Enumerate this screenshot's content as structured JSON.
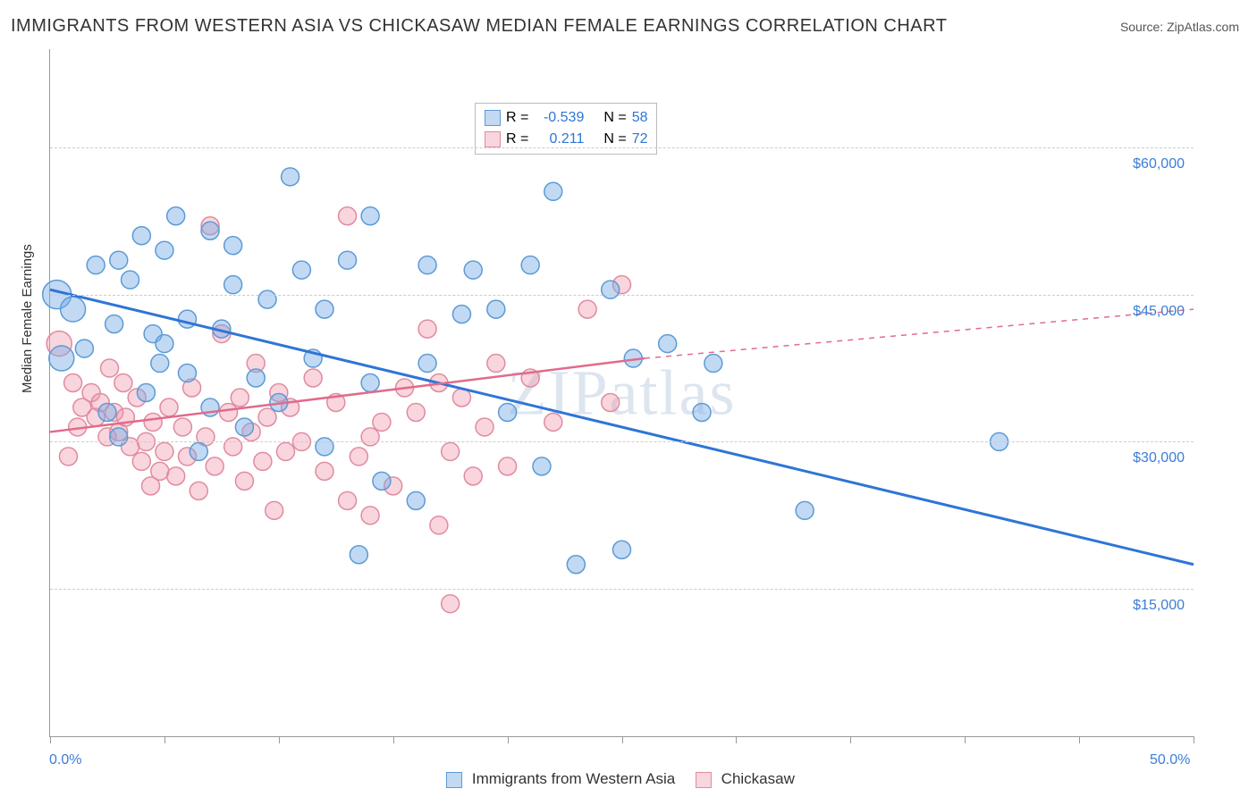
{
  "title": "IMMIGRANTS FROM WESTERN ASIA VS CHICKASAW MEDIAN FEMALE EARNINGS CORRELATION CHART",
  "source": "Source: ZipAtlas.com",
  "watermark": "ZIPatlas",
  "y_axis_label": "Median Female Earnings",
  "chart": {
    "type": "scatter",
    "xlim": [
      0,
      50
    ],
    "ylim": [
      0,
      70000
    ],
    "x_ticks_pct": [
      0,
      5,
      10,
      15,
      20,
      25,
      30,
      35,
      40,
      45,
      50
    ],
    "x_tick_labels": {
      "start": "0.0%",
      "end": "50.0%"
    },
    "y_gridlines": [
      15000,
      30000,
      45000,
      60000
    ],
    "y_tick_labels": [
      "$15,000",
      "$30,000",
      "$45,000",
      "$60,000"
    ],
    "background_color": "#ffffff",
    "grid_color": "#cccccc",
    "series": [
      {
        "name": "Immigrants from Western Asia",
        "color_fill": "rgba(120,170,230,0.45)",
        "color_stroke": "#5b9bd5",
        "marker_radius": 10,
        "trend": {
          "x1": 0,
          "y1": 45500,
          "x2": 50,
          "y2": 17500,
          "color": "#2e75d6",
          "width": 3,
          "dash": "none"
        },
        "r_value": "-0.539",
        "n_value": "58",
        "points": [
          {
            "x": 2.0,
            "y": 48000,
            "r": 10
          },
          {
            "x": 3.0,
            "y": 48500,
            "r": 10
          },
          {
            "x": 0.3,
            "y": 45000,
            "r": 16
          },
          {
            "x": 1.0,
            "y": 43500,
            "r": 14
          },
          {
            "x": 3.5,
            "y": 46500,
            "r": 10
          },
          {
            "x": 4.0,
            "y": 51000,
            "r": 10
          },
          {
            "x": 5.0,
            "y": 49500,
            "r": 10
          },
          {
            "x": 5.5,
            "y": 53000,
            "r": 10
          },
          {
            "x": 7.0,
            "y": 51500,
            "r": 10
          },
          {
            "x": 8.0,
            "y": 50000,
            "r": 10
          },
          {
            "x": 10.5,
            "y": 57000,
            "r": 10
          },
          {
            "x": 4.5,
            "y": 41000,
            "r": 10
          },
          {
            "x": 6.0,
            "y": 42500,
            "r": 10
          },
          {
            "x": 7.5,
            "y": 41500,
            "r": 10
          },
          {
            "x": 5.0,
            "y": 40000,
            "r": 10
          },
          {
            "x": 8.0,
            "y": 46000,
            "r": 10
          },
          {
            "x": 9.5,
            "y": 44500,
            "r": 10
          },
          {
            "x": 11.0,
            "y": 47500,
            "r": 10
          },
          {
            "x": 12.0,
            "y": 43500,
            "r": 10
          },
          {
            "x": 13.0,
            "y": 48500,
            "r": 10
          },
          {
            "x": 14.0,
            "y": 53000,
            "r": 10
          },
          {
            "x": 16.5,
            "y": 48000,
            "r": 10
          },
          {
            "x": 18.0,
            "y": 43000,
            "r": 10
          },
          {
            "x": 18.5,
            "y": 47500,
            "r": 10
          },
          {
            "x": 19.5,
            "y": 43500,
            "r": 10
          },
          {
            "x": 21.0,
            "y": 48000,
            "r": 10
          },
          {
            "x": 22.0,
            "y": 55500,
            "r": 10
          },
          {
            "x": 24.5,
            "y": 45500,
            "r": 10
          },
          {
            "x": 25.5,
            "y": 38500,
            "r": 10
          },
          {
            "x": 20.0,
            "y": 33000,
            "r": 10
          },
          {
            "x": 14.0,
            "y": 36000,
            "r": 10
          },
          {
            "x": 11.5,
            "y": 38500,
            "r": 10
          },
          {
            "x": 10.0,
            "y": 34000,
            "r": 10
          },
          {
            "x": 8.5,
            "y": 31500,
            "r": 10
          },
          {
            "x": 7.0,
            "y": 33500,
            "r": 10
          },
          {
            "x": 6.0,
            "y": 37000,
            "r": 10
          },
          {
            "x": 4.2,
            "y": 35000,
            "r": 10
          },
          {
            "x": 2.5,
            "y": 33000,
            "r": 10
          },
          {
            "x": 3.0,
            "y": 30500,
            "r": 10
          },
          {
            "x": 6.5,
            "y": 29000,
            "r": 10
          },
          {
            "x": 12.0,
            "y": 29500,
            "r": 10
          },
          {
            "x": 14.5,
            "y": 26000,
            "r": 10
          },
          {
            "x": 16.0,
            "y": 24000,
            "r": 10
          },
          {
            "x": 13.5,
            "y": 18500,
            "r": 10
          },
          {
            "x": 21.5,
            "y": 27500,
            "r": 10
          },
          {
            "x": 23.0,
            "y": 17500,
            "r": 10
          },
          {
            "x": 25.0,
            "y": 19000,
            "r": 10
          },
          {
            "x": 28.5,
            "y": 33000,
            "r": 10
          },
          {
            "x": 27.0,
            "y": 40000,
            "r": 10
          },
          {
            "x": 29.0,
            "y": 38000,
            "r": 10
          },
          {
            "x": 33.0,
            "y": 23000,
            "r": 10
          },
          {
            "x": 41.5,
            "y": 30000,
            "r": 10
          },
          {
            "x": 0.5,
            "y": 38500,
            "r": 14
          },
          {
            "x": 1.5,
            "y": 39500,
            "r": 10
          },
          {
            "x": 2.8,
            "y": 42000,
            "r": 10
          },
          {
            "x": 4.8,
            "y": 38000,
            "r": 10
          },
          {
            "x": 9.0,
            "y": 36500,
            "r": 10
          },
          {
            "x": 16.5,
            "y": 38000,
            "r": 10
          }
        ]
      },
      {
        "name": "Chickasaw",
        "color_fill": "rgba(240,150,170,0.40)",
        "color_stroke": "#e08ba0",
        "marker_radius": 10,
        "trend": {
          "x1": 0,
          "y1": 31000,
          "x2": 26,
          "y2": 38500,
          "x3": 50,
          "y3": 43500,
          "color": "#e06b8b",
          "width": 2.5,
          "dash_after": 26
        },
        "r_value": "0.211",
        "n_value": "72",
        "points": [
          {
            "x": 0.4,
            "y": 40000,
            "r": 14
          },
          {
            "x": 1.0,
            "y": 36000,
            "r": 10
          },
          {
            "x": 1.4,
            "y": 33500,
            "r": 10
          },
          {
            "x": 1.8,
            "y": 35000,
            "r": 10
          },
          {
            "x": 2.0,
            "y": 32500,
            "r": 10
          },
          {
            "x": 2.2,
            "y": 34000,
            "r": 10
          },
          {
            "x": 2.5,
            "y": 30500,
            "r": 10
          },
          {
            "x": 2.8,
            "y": 33000,
            "r": 10
          },
          {
            "x": 3.0,
            "y": 31000,
            "r": 10
          },
          {
            "x": 3.3,
            "y": 32500,
            "r": 10
          },
          {
            "x": 3.5,
            "y": 29500,
            "r": 10
          },
          {
            "x": 3.8,
            "y": 34500,
            "r": 10
          },
          {
            "x": 4.0,
            "y": 28000,
            "r": 10
          },
          {
            "x": 4.2,
            "y": 30000,
            "r": 10
          },
          {
            "x": 4.5,
            "y": 32000,
            "r": 10
          },
          {
            "x": 4.8,
            "y": 27000,
            "r": 10
          },
          {
            "x": 5.0,
            "y": 29000,
            "r": 10
          },
          {
            "x": 5.2,
            "y": 33500,
            "r": 10
          },
          {
            "x": 5.5,
            "y": 26500,
            "r": 10
          },
          {
            "x": 5.8,
            "y": 31500,
            "r": 10
          },
          {
            "x": 6.0,
            "y": 28500,
            "r": 10
          },
          {
            "x": 6.2,
            "y": 35500,
            "r": 10
          },
          {
            "x": 6.5,
            "y": 25000,
            "r": 10
          },
          {
            "x": 6.8,
            "y": 30500,
            "r": 10
          },
          {
            "x": 7.0,
            "y": 52000,
            "r": 10
          },
          {
            "x": 7.2,
            "y": 27500,
            "r": 10
          },
          {
            "x": 7.5,
            "y": 41000,
            "r": 10
          },
          {
            "x": 7.8,
            "y": 33000,
            "r": 10
          },
          {
            "x": 8.0,
            "y": 29500,
            "r": 10
          },
          {
            "x": 8.3,
            "y": 34500,
            "r": 10
          },
          {
            "x": 8.5,
            "y": 26000,
            "r": 10
          },
          {
            "x": 8.8,
            "y": 31000,
            "r": 10
          },
          {
            "x": 9.0,
            "y": 38000,
            "r": 10
          },
          {
            "x": 9.3,
            "y": 28000,
            "r": 10
          },
          {
            "x": 9.5,
            "y": 32500,
            "r": 10
          },
          {
            "x": 9.8,
            "y": 23000,
            "r": 10
          },
          {
            "x": 10.0,
            "y": 35000,
            "r": 10
          },
          {
            "x": 10.3,
            "y": 29000,
            "r": 10
          },
          {
            "x": 10.5,
            "y": 33500,
            "r": 10
          },
          {
            "x": 11.0,
            "y": 30000,
            "r": 10
          },
          {
            "x": 11.5,
            "y": 36500,
            "r": 10
          },
          {
            "x": 12.0,
            "y": 27000,
            "r": 10
          },
          {
            "x": 12.5,
            "y": 34000,
            "r": 10
          },
          {
            "x": 13.0,
            "y": 53000,
            "r": 10
          },
          {
            "x": 13.5,
            "y": 28500,
            "r": 10
          },
          {
            "x": 13.0,
            "y": 24000,
            "r": 10
          },
          {
            "x": 14.0,
            "y": 30500,
            "r": 10
          },
          {
            "x": 14.5,
            "y": 32000,
            "r": 10
          },
          {
            "x": 14.0,
            "y": 22500,
            "r": 10
          },
          {
            "x": 15.0,
            "y": 25500,
            "r": 10
          },
          {
            "x": 15.5,
            "y": 35500,
            "r": 10
          },
          {
            "x": 16.0,
            "y": 33000,
            "r": 10
          },
          {
            "x": 16.5,
            "y": 41500,
            "r": 10
          },
          {
            "x": 17.0,
            "y": 21500,
            "r": 10
          },
          {
            "x": 17.0,
            "y": 36000,
            "r": 10
          },
          {
            "x": 17.5,
            "y": 29000,
            "r": 10
          },
          {
            "x": 18.0,
            "y": 34500,
            "r": 10
          },
          {
            "x": 18.5,
            "y": 26500,
            "r": 10
          },
          {
            "x": 19.0,
            "y": 31500,
            "r": 10
          },
          {
            "x": 19.5,
            "y": 38000,
            "r": 10
          },
          {
            "x": 17.5,
            "y": 13500,
            "r": 10
          },
          {
            "x": 20.0,
            "y": 27500,
            "r": 10
          },
          {
            "x": 21.0,
            "y": 36500,
            "r": 10
          },
          {
            "x": 22.0,
            "y": 32000,
            "r": 10
          },
          {
            "x": 23.5,
            "y": 43500,
            "r": 10
          },
          {
            "x": 24.5,
            "y": 34000,
            "r": 10
          },
          {
            "x": 25.0,
            "y": 46000,
            "r": 10
          },
          {
            "x": 2.6,
            "y": 37500,
            "r": 10
          },
          {
            "x": 3.2,
            "y": 36000,
            "r": 10
          },
          {
            "x": 4.4,
            "y": 25500,
            "r": 10
          },
          {
            "x": 1.2,
            "y": 31500,
            "r": 10
          },
          {
            "x": 0.8,
            "y": 28500,
            "r": 10
          }
        ]
      }
    ],
    "legend_top": {
      "labels": {
        "r": "R =",
        "n": "N ="
      }
    },
    "legend_bottom": {
      "s1": "Immigrants from Western Asia",
      "s2": "Chickasaw"
    }
  }
}
